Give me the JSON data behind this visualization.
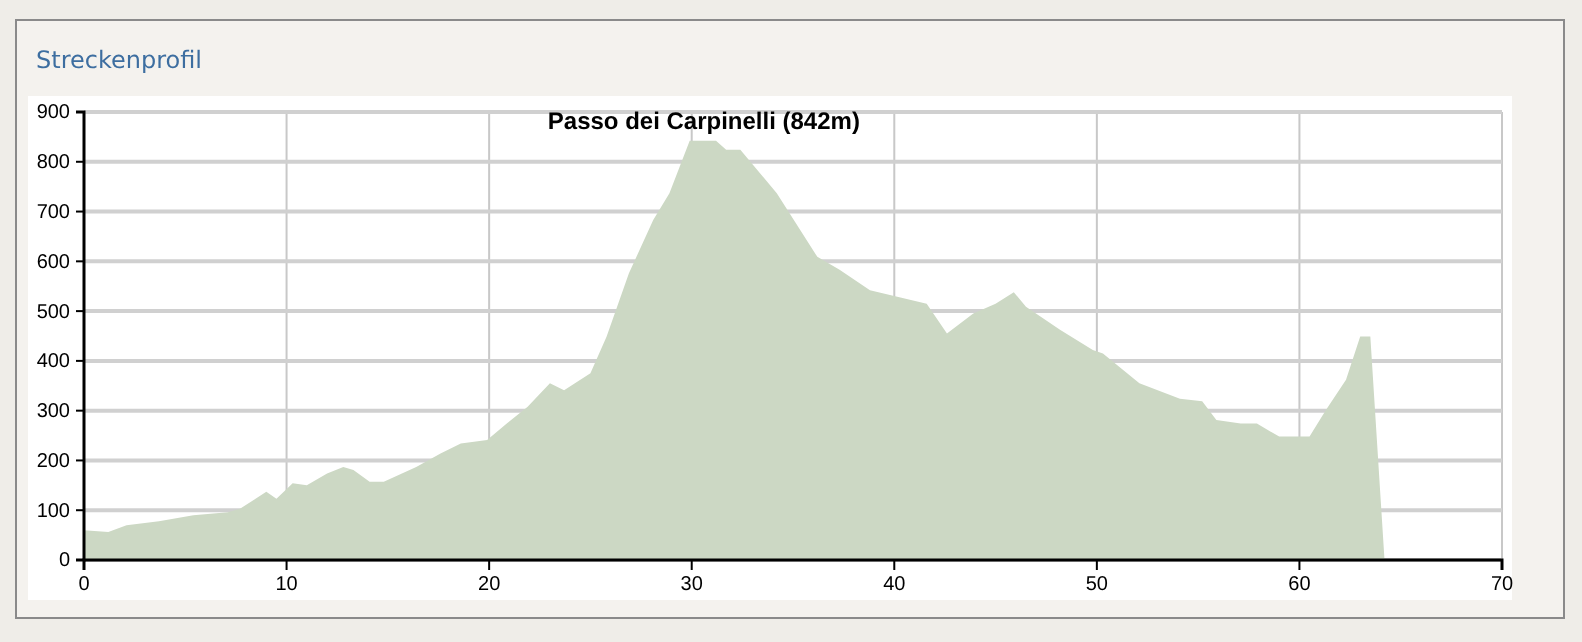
{
  "chart_data": {
    "type": "area",
    "title": "Streckenprofil",
    "annotations": [
      {
        "text": "Passo dei Carpinelli (842m)",
        "x": 30.6,
        "y": 842
      }
    ],
    "x": [
      0,
      1.2,
      2.1,
      3.7,
      5.4,
      7.1,
      7.7,
      9.0,
      9.5,
      10.3,
      11.0,
      12.0,
      12.8,
      13.3,
      14.1,
      14.8,
      16.4,
      17.6,
      18.6,
      19.9,
      20.9,
      21.9,
      23.0,
      23.7,
      25.0,
      25.8,
      26.9,
      28.1,
      28.9,
      29.9,
      31.2,
      31.7,
      32.4,
      34.2,
      36.2,
      37.3,
      38.8,
      41.6,
      42.6,
      43.9,
      45.0,
      45.9,
      46.5,
      48.2,
      49.8,
      50.3,
      52.1,
      54.1,
      55.2,
      55.9,
      57.1,
      57.9,
      59.0,
      60.5,
      61.3,
      62.3,
      63.0,
      63.5,
      64.2
    ],
    "series": [
      {
        "color": "#ccd8c4",
        "values": [
          60,
          56,
          70,
          78,
          90,
          96,
          103,
          137,
          123,
          154,
          150,
          174,
          187,
          181,
          157,
          157,
          187,
          214,
          234,
          241,
          275,
          308,
          355,
          341,
          375,
          449,
          576,
          683,
          737,
          842,
          842,
          824,
          824,
          737,
          609,
          583,
          542,
          515,
          455,
          495,
          515,
          538,
          509,
          462,
          422,
          415,
          355,
          324,
          319,
          281,
          274,
          274,
          248,
          248,
          301,
          362,
          449,
          449,
          0
        ]
      }
    ],
    "xlim": [
      0,
      70
    ],
    "xticks": [
      0,
      10,
      20,
      30,
      40,
      50,
      60,
      70
    ],
    "ylim": [
      0,
      900
    ],
    "yticks": [
      0,
      100,
      200,
      300,
      400,
      500,
      600,
      700,
      800,
      900
    ],
    "grid": true
  }
}
